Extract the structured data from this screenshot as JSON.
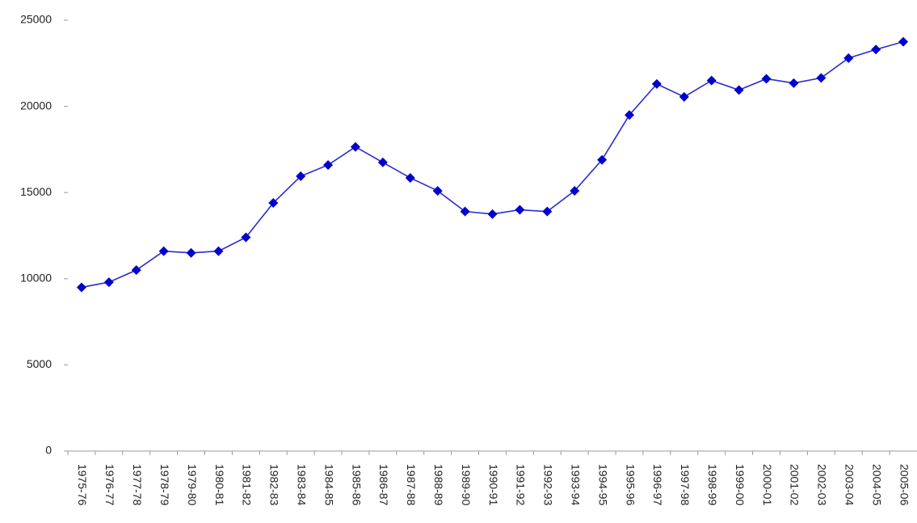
{
  "chart_data": {
    "type": "line",
    "categories": [
      "1975-76",
      "1976-77",
      "1977-78",
      "1978-79",
      "1979-80",
      "1980-81",
      "1981-82",
      "1982-83",
      "1983-84",
      "1984-85",
      "1985-86",
      "1986-87",
      "1987-88",
      "1988-89",
      "1989-90",
      "1990-91",
      "1991-92",
      "1992-93",
      "1993-94",
      "1994-95",
      "1995-96",
      "1996-97",
      "1997-98",
      "1998-99",
      "1999-00",
      "2000-01",
      "2001-02",
      "2002-03",
      "2003-04",
      "2004-05",
      "2005-06"
    ],
    "values": [
      9500,
      9800,
      10500,
      11600,
      11500,
      11600,
      12400,
      14400,
      15950,
      16600,
      17650,
      16750,
      15850,
      15100,
      13900,
      13750,
      14000,
      13900,
      15100,
      16900,
      19500,
      21300,
      20550,
      21500,
      20950,
      21600,
      21350,
      21650,
      22800,
      23300,
      23750
    ],
    "color": "#0000cc",
    "ylim": [
      0,
      25000
    ],
    "yticks": [
      0,
      5000,
      10000,
      15000,
      20000,
      25000
    ],
    "grid": false
  }
}
